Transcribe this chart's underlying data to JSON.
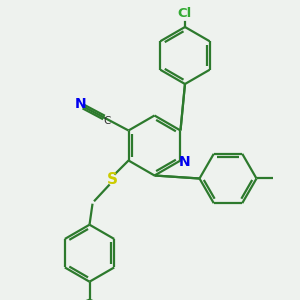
{
  "background_color": "#eef2ee",
  "bond_color": "#2d7a2d",
  "bond_width": 1.6,
  "atom_colors": {
    "N": "#0000ee",
    "S": "#cccc00",
    "Cl": "#33aa33",
    "C_nitrile": "#333333",
    "N_nitrile": "#0000ee"
  },
  "fig_width": 3.0,
  "fig_height": 3.0,
  "dpi": 100
}
